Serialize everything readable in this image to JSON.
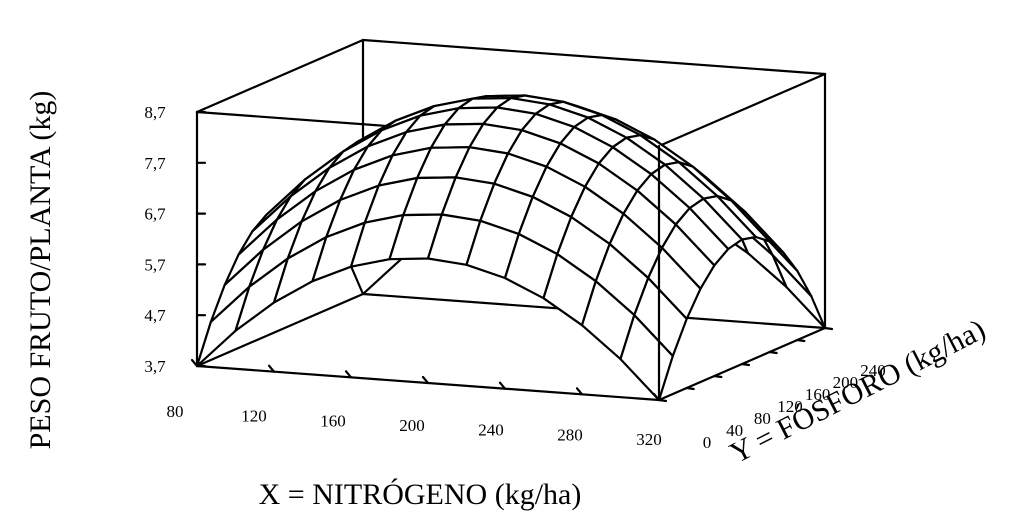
{
  "chart_data": {
    "type": "surface",
    "xlabel": "X = NITRÓGENO (kg/ha)",
    "ylabel": "Y = FÓSFORO (kg/ha)",
    "zlabel": "PESO FRUTO/PLANTA (kg)",
    "x_ticks": [
      "80",
      "120",
      "160",
      "200",
      "240",
      "280",
      "320"
    ],
    "y_ticks": [
      "0",
      "40",
      "80",
      "120",
      "160",
      "200",
      "240"
    ],
    "z_ticks": [
      "3,7",
      "4,7",
      "5,7",
      "6,7",
      "7,7",
      "8,7"
    ],
    "xlim": [
      80,
      320
    ],
    "ylim": [
      0,
      240
    ],
    "zlim": [
      3.7,
      8.7
    ],
    "grid": false,
    "surface": {
      "x_center": 200,
      "y_center": 120,
      "z_max": 8.6,
      "z_corner": 3.7,
      "x_steps": 12,
      "y_steps": 12
    }
  }
}
